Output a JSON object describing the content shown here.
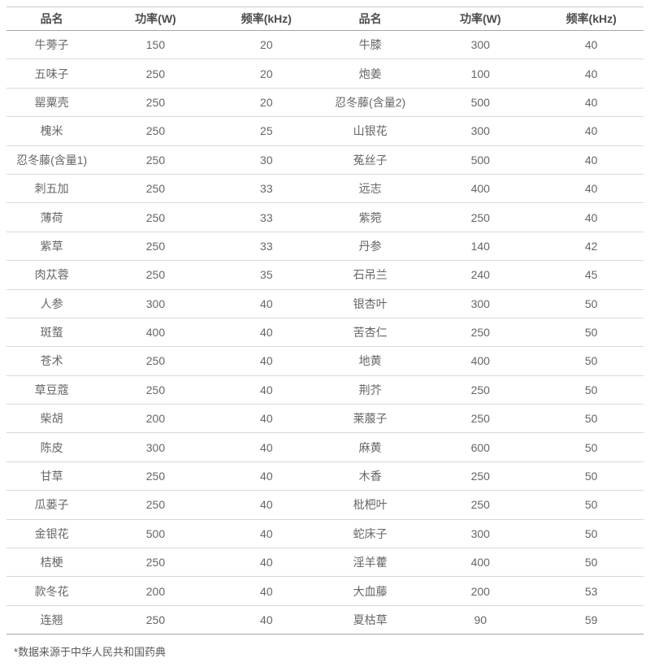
{
  "table": {
    "headers": [
      "品名",
      "功率(W)",
      "频率(kHz)",
      "品名",
      "功率(W)",
      "频率(kHz)"
    ],
    "rows": [
      [
        "牛蒡子",
        "150",
        "20",
        "牛膝",
        "300",
        "40"
      ],
      [
        "五味子",
        "250",
        "20",
        "炮姜",
        "100",
        "40"
      ],
      [
        "罂粟壳",
        "250",
        "20",
        "忍冬藤(含量2)",
        "500",
        "40"
      ],
      [
        "槐米",
        "250",
        "25",
        "山银花",
        "300",
        "40"
      ],
      [
        "忍冬藤(含量1)",
        "250",
        "30",
        "菟丝子",
        "500",
        "40"
      ],
      [
        "刺五加",
        "250",
        "33",
        "远志",
        "400",
        "40"
      ],
      [
        "薄荷",
        "250",
        "33",
        "紫菀",
        "250",
        "40"
      ],
      [
        "紫草",
        "250",
        "33",
        "丹参",
        "140",
        "42"
      ],
      [
        "肉苁蓉",
        "250",
        "35",
        "石吊兰",
        "240",
        "45"
      ],
      [
        "人参",
        "300",
        "40",
        "银杏叶",
        "300",
        "50"
      ],
      [
        "斑蝥",
        "400",
        "40",
        "苦杏仁",
        "250",
        "50"
      ],
      [
        "苍术",
        "250",
        "40",
        "地黄",
        "400",
        "50"
      ],
      [
        "草豆蔻",
        "250",
        "40",
        "荆芥",
        "250",
        "50"
      ],
      [
        "柴胡",
        "200",
        "40",
        "莱菔子",
        "250",
        "50"
      ],
      [
        "陈皮",
        "300",
        "40",
        "麻黄",
        "600",
        "50"
      ],
      [
        "甘草",
        "250",
        "40",
        "木香",
        "250",
        "50"
      ],
      [
        "瓜蒌子",
        "250",
        "40",
        "枇杷叶",
        "250",
        "50"
      ],
      [
        "金银花",
        "500",
        "40",
        "蛇床子",
        "300",
        "50"
      ],
      [
        "桔梗",
        "250",
        "40",
        "淫羊藿",
        "400",
        "50"
      ],
      [
        "款冬花",
        "200",
        "40",
        "大血藤",
        "200",
        "53"
      ],
      [
        "连翘",
        "250",
        "40",
        "夏枯草",
        "90",
        "59"
      ]
    ],
    "footnote": "*数据来源于中华人民共和国药典"
  },
  "colors": {
    "header_text": "#4d4d4d",
    "body_text": "#666666",
    "row_border": "#d9d9d9",
    "strong_border": "#a6a6a6",
    "top_border": "#c9c9c9"
  }
}
